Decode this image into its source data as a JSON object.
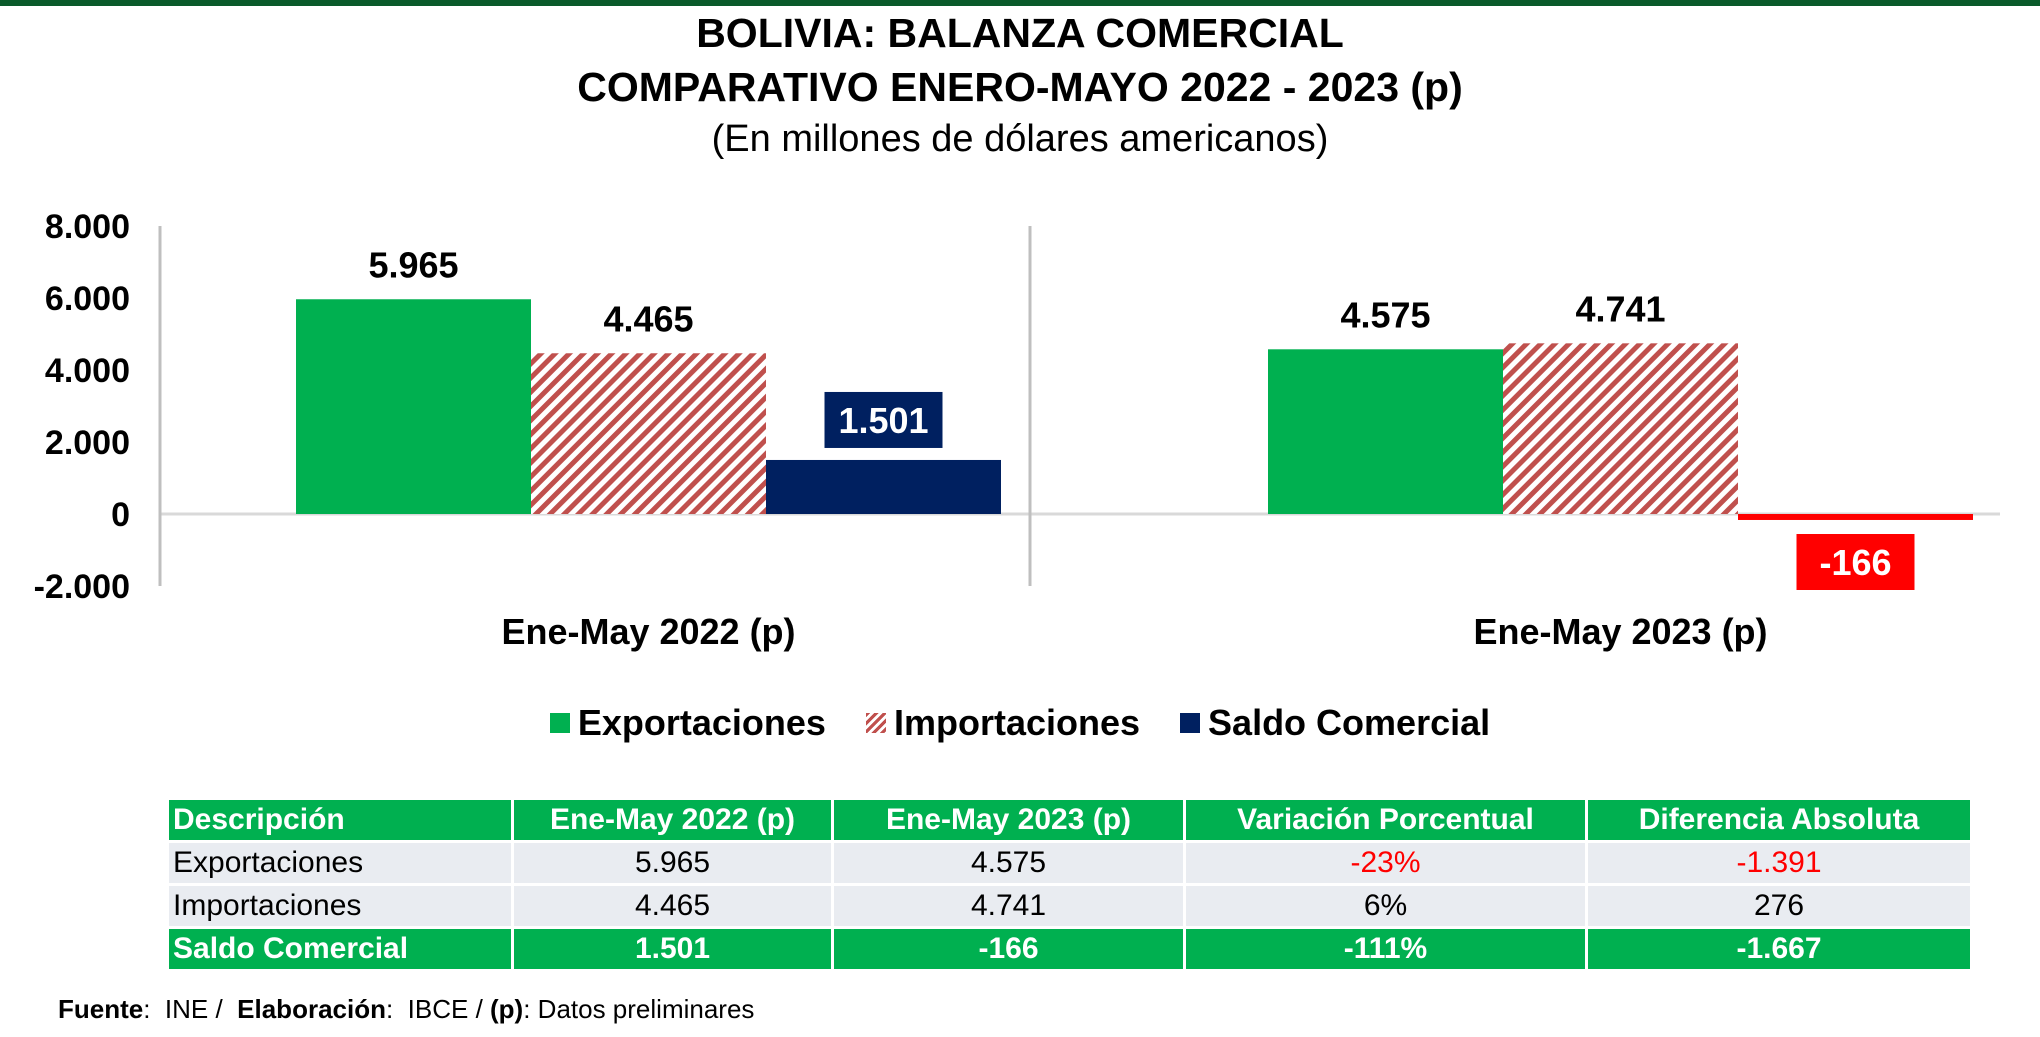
{
  "chart_data": {
    "type": "bar",
    "title": "BOLIVIA: BALANZA COMERCIAL",
    "title_line2": "COMPARATIVO ENERO-MAYO 2022 - 2023 (p)",
    "subtitle": "(En millones de dólares americanos)",
    "categories": [
      "Ene-May 2022 (p)",
      "Ene-May 2023 (p)"
    ],
    "series": [
      {
        "name": "Exportaciones",
        "values": [
          5965,
          4575
        ],
        "labels": [
          "5.965",
          "4.575"
        ],
        "color": "#00b050",
        "pattern": "solid"
      },
      {
        "name": "Importaciones",
        "values": [
          4465,
          4741
        ],
        "labels": [
          "4.465",
          "4.741"
        ],
        "color": "#c0504d",
        "pattern": "diagonal-stripes"
      },
      {
        "name": "Saldo Comercial",
        "values": [
          1501,
          -166
        ],
        "labels": [
          "1.501",
          "-166"
        ],
        "color": "#002060",
        "negative_color": "#ff0000",
        "pattern": "solid"
      }
    ],
    "ylim": [
      -2000,
      8000
    ],
    "yticks": [
      -2000,
      0,
      2000,
      4000,
      6000,
      8000
    ],
    "ytick_labels": [
      "-2.000",
      "0",
      "2.000",
      "4.000",
      "6.000",
      "8.000"
    ],
    "legend_position": "bottom",
    "grid": false
  },
  "table": {
    "headers": [
      "Descripción",
      "Ene-May 2022 (p)",
      "Ene-May 2023 (p)",
      "Variación Porcentual",
      "Diferencia Absoluta"
    ],
    "rows": [
      [
        "Exportaciones",
        "5.965",
        "4.575",
        "-23%",
        "-1.391"
      ],
      [
        "Importaciones",
        "4.465",
        "4.741",
        "6%",
        "276"
      ]
    ],
    "total": [
      "Saldo Comercial",
      "1.501",
      "-166",
      "-111%",
      "-1.667"
    ]
  },
  "source": {
    "fuente_label": "Fuente",
    "fuente_value": ":  INE /  ",
    "elab_label": "Elaboración",
    "elab_value": ":  IBCE / ",
    "p_label": "(p)",
    "p_value": ": Datos preliminares"
  },
  "colors": {
    "accent": "#00b050",
    "negative": "#ff0000",
    "dark_blue": "#002060",
    "stripe": "#c0504d",
    "bar_top": "#0a5a2a"
  }
}
